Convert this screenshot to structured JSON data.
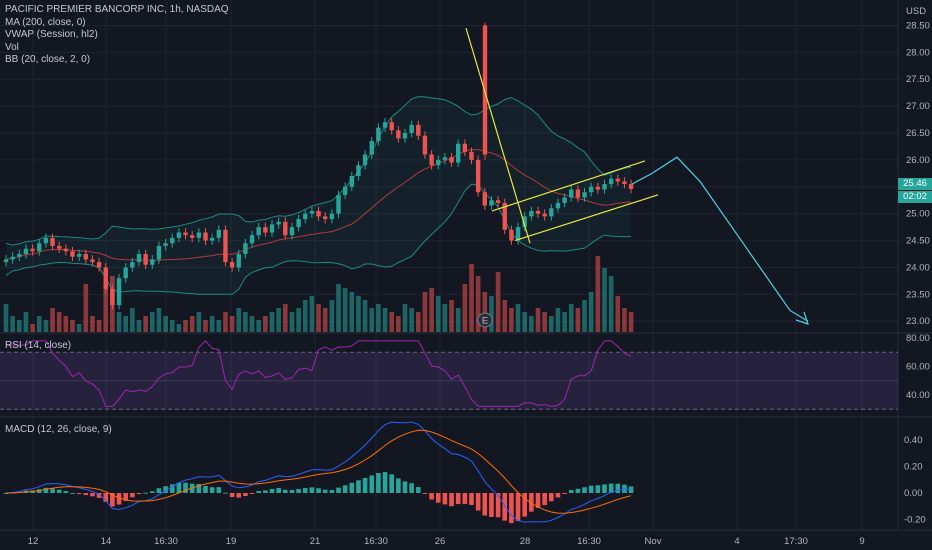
{
  "header": {
    "title": "PACIFIC PREMIER BANCORP INC, 1h, NASDAQ",
    "indicators": [
      "MA (200, close, 0)",
      "VWAP (Session, hl2)",
      "Vol",
      "BB (20, close, 2, 0)"
    ],
    "currency": "USD"
  },
  "price_tags": {
    "last": "25.46",
    "countdown": "02:02"
  },
  "rsi_label": "RSI (14, close)",
  "macd_label": "MACD (12, 26, close, 9)",
  "earnings_marker": "E",
  "colors": {
    "up": "#26a69a",
    "down": "#ef5350",
    "background": "#131722",
    "trendline": "#e8e83c",
    "projection": "#4dd0e1",
    "rsi": "#9c27b0",
    "macd": "#2962ff",
    "signal": "#ff6d00"
  },
  "chart_data": [
    {
      "type": "candlestick",
      "title": "PACIFIC PREMIER BANCORP INC, 1h, NASDAQ",
      "yaxis": {
        "ticks": [
          "28.50",
          "28.00",
          "27.50",
          "27.00",
          "26.50",
          "26.00",
          "25.50",
          "25.00",
          "24.50",
          "24.00",
          "23.50",
          "23.00"
        ],
        "range": [
          22.8,
          28.75
        ]
      },
      "xaxis": {
        "ticks": [
          "12",
          "14",
          "16:30",
          "19",
          "21",
          "16:30",
          "26",
          "28",
          "16:30",
          "Nov",
          "4",
          "17:30",
          "9"
        ]
      },
      "closes": [
        24.15,
        24.2,
        24.25,
        24.35,
        24.3,
        24.45,
        24.55,
        24.4,
        24.35,
        24.3,
        24.2,
        24.25,
        24.15,
        24.1,
        24.0,
        23.6,
        23.3,
        23.8,
        24.0,
        24.1,
        24.25,
        24.05,
        24.15,
        24.4,
        24.45,
        24.55,
        24.65,
        24.6,
        24.55,
        24.65,
        24.5,
        24.55,
        24.7,
        24.1,
        24.0,
        24.25,
        24.45,
        24.6,
        24.75,
        24.65,
        24.8,
        24.85,
        24.6,
        24.75,
        24.9,
        25.0,
        25.05,
        24.95,
        24.9,
        25.0,
        25.35,
        25.5,
        25.7,
        25.9,
        26.1,
        26.35,
        26.6,
        26.7,
        26.55,
        26.4,
        26.5,
        26.65,
        26.45,
        26.1,
        25.9,
        26.0,
        26.05,
        25.95,
        26.3,
        26.15,
        26.0,
        25.4,
        25.15,
        25.25,
        25.2,
        24.7,
        24.5,
        24.75,
        24.95,
        25.05,
        25.0,
        24.95,
        25.1,
        25.2,
        25.3,
        25.45,
        25.3,
        25.4,
        25.5,
        25.45,
        25.55,
        25.65,
        25.6,
        25.55,
        25.46
      ],
      "volumes": [
        0.35,
        0.2,
        0.15,
        0.25,
        0.1,
        0.2,
        0.15,
        0.3,
        0.25,
        0.2,
        0.15,
        0.1,
        0.6,
        0.2,
        0.15,
        0.6,
        0.7,
        0.25,
        0.2,
        0.3,
        0.15,
        0.2,
        0.25,
        0.3,
        0.2,
        0.15,
        0.1,
        0.15,
        0.2,
        0.25,
        0.15,
        0.2,
        0.15,
        0.25,
        0.2,
        0.3,
        0.25,
        0.2,
        0.15,
        0.2,
        0.25,
        0.3,
        0.35,
        0.25,
        0.3,
        0.4,
        0.45,
        0.35,
        0.3,
        0.4,
        0.6,
        0.55,
        0.5,
        0.45,
        0.4,
        0.3,
        0.35,
        0.3,
        0.25,
        0.2,
        0.35,
        0.3,
        0.25,
        0.5,
        0.55,
        0.45,
        0.35,
        0.4,
        0.3,
        0.6,
        0.85,
        0.7,
        0.5,
        0.45,
        0.75,
        0.4,
        0.3,
        0.35,
        0.25,
        0.2,
        0.3,
        0.25,
        0.2,
        0.3,
        0.25,
        0.35,
        0.3,
        0.4,
        0.5,
        0.95,
        0.8,
        0.7,
        0.45,
        0.3,
        0.25
      ],
      "rsi_levels": [
        70,
        50,
        30
      ],
      "rsi_ticks": [
        "80.00",
        "60.00",
        "40.00"
      ],
      "macd_ticks": [
        "0.40",
        "0.20",
        "0.00",
        "-0.20"
      ]
    }
  ]
}
